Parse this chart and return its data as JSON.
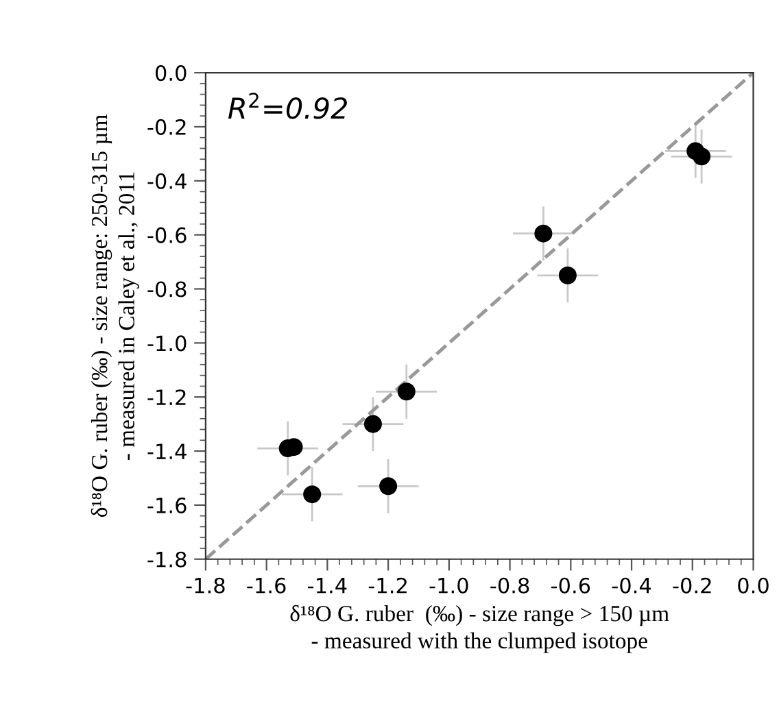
{
  "chart_data": {
    "type": "scatter",
    "xlabel": "δ¹⁸O G. ruber  (‰) - size range > 150 µm\n- measured with the clumped isotope",
    "ylabel": "δ¹⁸O G. ruber (‰) - size range: 250-315 µm\n- measured in Caley et al., 2011",
    "annotations": [
      "R$^{2}$=0.92"
    ],
    "xlim": [
      -1.8,
      0.0
    ],
    "ylim": [
      -1.8,
      0.0
    ],
    "xticks": [
      -1.8,
      -1.6,
      -1.4,
      -1.2,
      {
        "value": -1,
        "label": "-1.0"
      },
      -0.8,
      -0.6,
      -0.4,
      -0.2,
      {
        "value": 0,
        "label": "0.0"
      }
    ],
    "yticks": [
      -1.8,
      -1.6,
      -1.4,
      -1.2,
      {
        "value": -1,
        "label": "-1.0"
      },
      -0.8,
      -0.6,
      -0.4,
      -0.2,
      {
        "value": 0,
        "label": "0.0"
      }
    ],
    "grid": false,
    "legend": false,
    "marker": "circle",
    "series": [
      {
        "color": "#000000",
        "x": [
          -0.19,
          -0.17,
          -0.69,
          -0.61,
          -1.14,
          -1.25,
          -1.53,
          -1.51,
          -1.45,
          -1.2
        ],
        "values": [
          -0.29,
          -0.31,
          -0.595,
          -0.75,
          -1.18,
          -1.3,
          -1.39,
          -1.385,
          -1.56,
          -1.53
        ],
        "errors": [
          0.1,
          0.1,
          0.1,
          0.1,
          0.1,
          0.1,
          0.1,
          null,
          0.1,
          0.1
        ],
        "xerrors": [
          0.1,
          0.1,
          0.1,
          0.1,
          0.1,
          0.1,
          0.1,
          null,
          0.1,
          0.1
        ]
      },
      {
        "type": "line",
        "color": "#999999",
        "x": [
          -1.8,
          0.0
        ],
        "values": [
          -1.8,
          0.0
        ],
        "line_style": "dashed",
        "marker": "none"
      }
    ]
  }
}
